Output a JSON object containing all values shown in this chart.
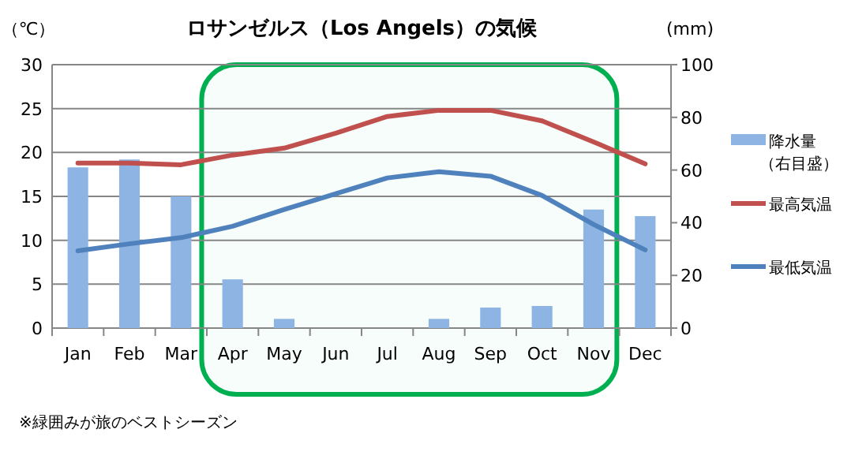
{
  "chart_data": {
    "type": "bar",
    "title": "ロサンゼルス（Los Angels）の気候",
    "ylabel": "（℃）",
    "y2label": "(mm)",
    "categories": [
      "Jan",
      "Feb",
      "Mar",
      "Apr",
      "May",
      "Jun",
      "Jul",
      "Aug",
      "Sep",
      "Oct",
      "Nov",
      "Dec"
    ],
    "series": [
      {
        "name": "降水量（右目盛）",
        "axis": "y2",
        "color": "#8db4e2",
        "values": [
          61,
          64,
          50,
          18.5,
          3.5,
          0,
          0,
          3.5,
          7.8,
          8.4,
          45,
          42.5
        ]
      },
      {
        "name": "最高気温",
        "type": "line",
        "color": "#c0504d",
        "values": [
          18.8,
          18.8,
          18.6,
          19.7,
          20.5,
          22.2,
          24.1,
          24.8,
          24.8,
          23.6,
          21.2,
          18.7
        ]
      },
      {
        "name": "最低気温",
        "type": "line",
        "color": "#4f81bd",
        "values": [
          8.8,
          9.6,
          10.3,
          11.6,
          13.5,
          15.3,
          17.1,
          17.8,
          17.3,
          15.1,
          11.8,
          8.9
        ]
      }
    ],
    "ylim": [
      0,
      30
    ],
    "yticks": [
      0,
      5,
      10,
      15,
      20,
      25,
      30
    ],
    "y2lim": [
      0,
      100
    ],
    "y2ticks": [
      0,
      20,
      40,
      60,
      80,
      100
    ],
    "grid": "y",
    "legend": "right",
    "bands": [
      {
        "axis": "x",
        "from": "Apr",
        "to": "Nov",
        "color": "#00b050"
      }
    ],
    "annotations": [
      "※緑囲みが旅のベストシーズン"
    ]
  }
}
